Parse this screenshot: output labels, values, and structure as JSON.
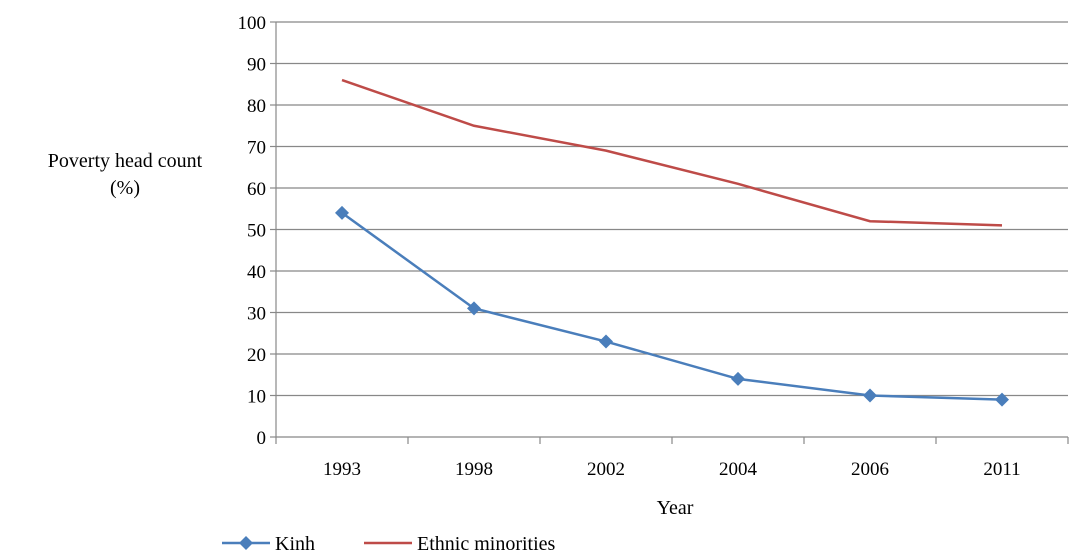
{
  "chart_data": {
    "type": "line",
    "title": "",
    "xlabel": "Year",
    "ylabel_lines": [
      "Poverty head count",
      "(%)"
    ],
    "categories": [
      "1993",
      "1998",
      "2002",
      "2004",
      "2006",
      "2011"
    ],
    "ylim": [
      0,
      100
    ],
    "yticks": [
      "0",
      "10",
      "20",
      "30",
      "40",
      "50",
      "60",
      "70",
      "80",
      "90",
      "100"
    ],
    "grid": true,
    "legend_position": "bottom-left",
    "series": [
      {
        "name": "Kinh",
        "values": [
          54,
          31,
          23,
          14,
          10,
          9
        ],
        "color": "#4a7ebb",
        "marker": "diamond"
      },
      {
        "name": "Ethnic minorities",
        "values": [
          86,
          75,
          69,
          61,
          52,
          51
        ],
        "color": "#be4b48",
        "marker": "none"
      }
    ]
  }
}
